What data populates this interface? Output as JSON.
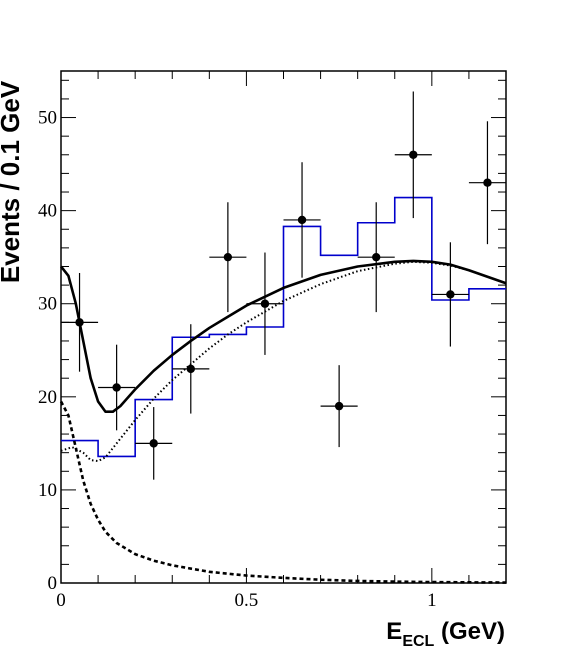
{
  "chart_data": {
    "type": "scatter",
    "ylabel": "Events / 0.1 GeV",
    "xlabel": {
      "main": "E",
      "sub": "ECL",
      "unit": " (GeV)"
    },
    "xlim": [
      0,
      1.2
    ],
    "ylim": [
      0,
      55
    ],
    "x_ticks": [
      {
        "value": 0,
        "label": "0"
      },
      {
        "value": 0.5,
        "label": "0.5"
      },
      {
        "value": 1,
        "label": "1"
      }
    ],
    "y_ticks": [
      {
        "value": 0,
        "label": "0"
      },
      {
        "value": 10,
        "label": "10"
      },
      {
        "value": 20,
        "label": "20"
      },
      {
        "value": 30,
        "label": "30"
      },
      {
        "value": 40,
        "label": "40"
      },
      {
        "value": 50,
        "label": "50"
      }
    ],
    "data_points": [
      {
        "x": 0.05,
        "y": 28,
        "err_lo": 5.3,
        "err_hi": 5.3,
        "x_err": 0.05
      },
      {
        "x": 0.15,
        "y": 21,
        "err_lo": 4.6,
        "err_hi": 4.6,
        "x_err": 0.05
      },
      {
        "x": 0.25,
        "y": 15,
        "err_lo": 3.9,
        "err_hi": 3.9,
        "x_err": 0.05
      },
      {
        "x": 0.35,
        "y": 23,
        "err_lo": 4.8,
        "err_hi": 4.8,
        "x_err": 0.05
      },
      {
        "x": 0.45,
        "y": 35,
        "err_lo": 5.9,
        "err_hi": 5.9,
        "x_err": 0.05
      },
      {
        "x": 0.55,
        "y": 30,
        "err_lo": 5.5,
        "err_hi": 5.5,
        "x_err": 0.05
      },
      {
        "x": 0.65,
        "y": 39,
        "err_lo": 6.2,
        "err_hi": 6.2,
        "x_err": 0.05
      },
      {
        "x": 0.75,
        "y": 19,
        "err_lo": 4.4,
        "err_hi": 4.4,
        "x_err": 0.05
      },
      {
        "x": 0.85,
        "y": 35,
        "err_lo": 5.9,
        "err_hi": 5.9,
        "x_err": 0.05
      },
      {
        "x": 0.95,
        "y": 46,
        "err_lo": 6.8,
        "err_hi": 6.8,
        "x_err": 0.05
      },
      {
        "x": 1.05,
        "y": 31,
        "err_lo": 5.6,
        "err_hi": 5.6,
        "x_err": 0.05
      },
      {
        "x": 1.15,
        "y": 43,
        "err_lo": 6.6,
        "err_hi": 6.6,
        "x_err": 0.05
      }
    ],
    "histogram": {
      "color": "#0000cc",
      "bin_edges": [
        0,
        0.1,
        0.2,
        0.3,
        0.4,
        0.5,
        0.6,
        0.7,
        0.8,
        0.9,
        1.0,
        1.1,
        1.2
      ],
      "values": [
        15.3,
        13.6,
        19.7,
        26.4,
        26.7,
        27.5,
        38.3,
        35.2,
        38.7,
        41.4,
        30.4,
        31.6
      ]
    },
    "curves": [
      {
        "style": "solid",
        "color": "#000000",
        "points": [
          [
            0,
            34
          ],
          [
            0.02,
            33
          ],
          [
            0.04,
            30
          ],
          [
            0.06,
            26
          ],
          [
            0.08,
            22
          ],
          [
            0.1,
            19.5
          ],
          [
            0.12,
            18.4
          ],
          [
            0.14,
            18.4
          ],
          [
            0.16,
            19
          ],
          [
            0.2,
            20.8
          ],
          [
            0.25,
            22.8
          ],
          [
            0.3,
            24.5
          ],
          [
            0.35,
            26
          ],
          [
            0.4,
            27.4
          ],
          [
            0.45,
            28.6
          ],
          [
            0.5,
            29.8
          ],
          [
            0.6,
            31.7
          ],
          [
            0.7,
            33.1
          ],
          [
            0.8,
            34
          ],
          [
            0.9,
            34.5
          ],
          [
            0.95,
            34.6
          ],
          [
            1.0,
            34.5
          ],
          [
            1.05,
            34.2
          ],
          [
            1.1,
            33.6
          ],
          [
            1.15,
            32.9
          ],
          [
            1.2,
            32.2
          ]
        ]
      },
      {
        "style": "dotted",
        "color": "#000000",
        "points": [
          [
            0,
            14.2
          ],
          [
            0.03,
            14.6
          ],
          [
            0.06,
            14
          ],
          [
            0.08,
            13.2
          ],
          [
            0.1,
            13.1
          ],
          [
            0.12,
            13.5
          ],
          [
            0.15,
            15
          ],
          [
            0.2,
            17.5
          ],
          [
            0.25,
            19.8
          ],
          [
            0.3,
            21.8
          ],
          [
            0.35,
            23.5
          ],
          [
            0.4,
            25.2
          ],
          [
            0.45,
            26.7
          ],
          [
            0.5,
            28
          ],
          [
            0.6,
            30.3
          ],
          [
            0.7,
            32.1
          ],
          [
            0.8,
            33.5
          ],
          [
            0.9,
            34.3
          ],
          [
            0.95,
            34.5
          ],
          [
            1.0,
            34.4
          ],
          [
            1.05,
            34.1
          ],
          [
            1.1,
            33.6
          ],
          [
            1.15,
            32.9
          ],
          [
            1.2,
            32.2
          ]
        ]
      },
      {
        "style": "dashed",
        "color": "#000000",
        "points": [
          [
            0,
            19.5
          ],
          [
            0.02,
            18
          ],
          [
            0.04,
            14.5
          ],
          [
            0.06,
            11
          ],
          [
            0.08,
            8.5
          ],
          [
            0.1,
            6.8
          ],
          [
            0.12,
            5.5
          ],
          [
            0.15,
            4.3
          ],
          [
            0.2,
            3.1
          ],
          [
            0.25,
            2.4
          ],
          [
            0.3,
            1.9
          ],
          [
            0.4,
            1.2
          ],
          [
            0.5,
            0.8
          ],
          [
            0.6,
            0.55
          ],
          [
            0.7,
            0.35
          ],
          [
            0.8,
            0.22
          ],
          [
            0.9,
            0.15
          ],
          [
            1.0,
            0.1
          ],
          [
            1.1,
            0.07
          ],
          [
            1.2,
            0.05
          ]
        ]
      }
    ],
    "grid": false,
    "legend": "none"
  }
}
